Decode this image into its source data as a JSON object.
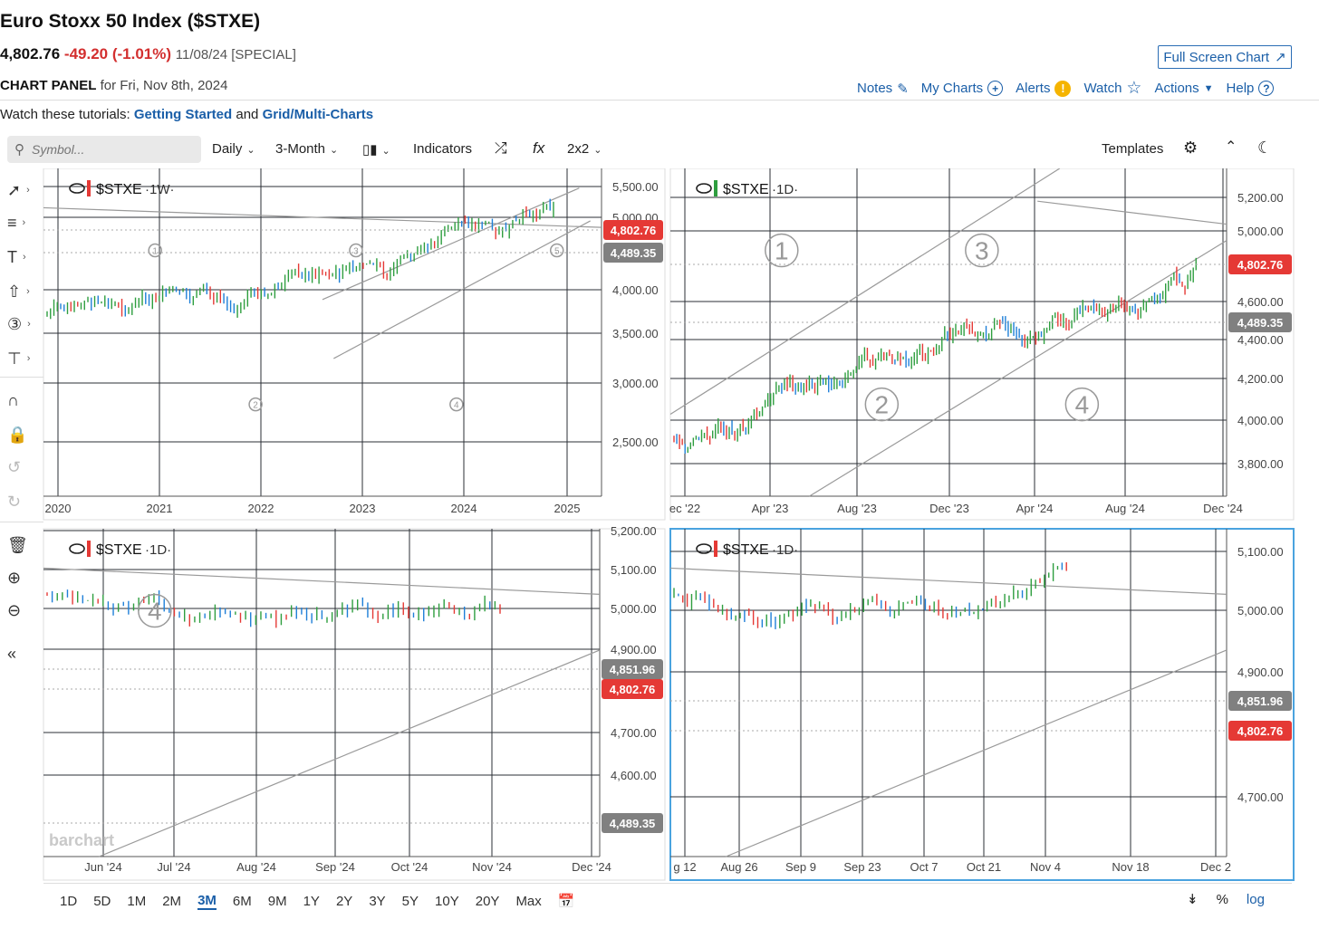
{
  "header": {
    "title": "Euro Stoxx 50 Index ($STXE)",
    "last_price": "4,802.76",
    "change": "-49.20 (-1.01%)",
    "meta": "11/08/24 [SPECIAL]",
    "fullscreen_label": "Full Screen Chart",
    "panel_label": "CHART PANEL",
    "panel_date": "for Fri, Nov 8th, 2024"
  },
  "links": {
    "notes": "Notes",
    "my_charts": "My Charts",
    "alerts": "Alerts",
    "watch": "Watch",
    "actions": "Actions",
    "help": "Help"
  },
  "tutorials": {
    "prefix": "Watch these tutorials:",
    "link1": "Getting Started",
    "and": "and",
    "link2": "Grid/Multi-Charts"
  },
  "toolbar": {
    "symbol_placeholder": "Symbol...",
    "interval": "Daily",
    "period": "3-Month",
    "indicators": "Indicators",
    "fx": "fx",
    "grid": "2x2",
    "templates": "Templates"
  },
  "bottom": {
    "ranges": [
      "1D",
      "5D",
      "1M",
      "2M",
      "3M",
      "6M",
      "9M",
      "1Y",
      "2Y",
      "3Y",
      "5Y",
      "10Y",
      "20Y",
      "Max"
    ],
    "active_range": "3M",
    "percent": "%",
    "log": "log"
  },
  "colors": {
    "up": "#2e9e3f",
    "down": "#e53935",
    "blue": "#1e7fd8",
    "price_tag": "#e53935",
    "level_tag": "#808080",
    "link": "#1b5fa8"
  },
  "charts": [
    {
      "id": "tl",
      "legend": "$STXE",
      "interval": "1W",
      "y_ticks": [
        "5,500.00",
        "5,000.00",
        "4,000.00",
        "3,500.00",
        "3,000.00",
        "2,500.00"
      ],
      "x_ticks": [
        "2020",
        "2021",
        "2022",
        "2023",
        "2024",
        "2025"
      ],
      "tags": [
        {
          "label": "4,802.76",
          "kind": "price"
        },
        {
          "label": "4,489.35",
          "kind": "level"
        }
      ],
      "waves": [
        "1",
        "2",
        "3",
        "4",
        "5"
      ]
    },
    {
      "id": "tr",
      "legend": "$STXE",
      "interval": "1D",
      "y_ticks": [
        "5,200.00",
        "5,000.00",
        "4,600.00",
        "4,400.00",
        "4,200.00",
        "4,000.00",
        "3,800.00"
      ],
      "x_ticks": [
        "ec '22",
        "Apr '23",
        "Aug '23",
        "Dec '23",
        "Apr '24",
        "Aug '24",
        "Dec '24"
      ],
      "tags": [
        {
          "label": "4,802.76",
          "kind": "price"
        },
        {
          "label": "4,489.35",
          "kind": "level"
        }
      ],
      "waves": [
        "1",
        "2",
        "3",
        "4"
      ]
    },
    {
      "id": "bl",
      "legend": "$STXE",
      "interval": "1D",
      "y_ticks": [
        "5,200.00",
        "5,100.00",
        "5,000.00",
        "4,900.00",
        "4,700.00",
        "4,600.00"
      ],
      "x_ticks": [
        "Jun '24",
        "Jul '24",
        "Aug '24",
        "Sep '24",
        "Oct '24",
        "Nov '24",
        "Dec '24"
      ],
      "tags": [
        {
          "label": "4,851.96",
          "kind": "level"
        },
        {
          "label": "4,802.76",
          "kind": "price"
        },
        {
          "label": "4,489.35",
          "kind": "level"
        }
      ],
      "watermark": "barchart",
      "waves": [
        "4"
      ]
    },
    {
      "id": "br",
      "legend": "$STXE",
      "interval": "1D",
      "y_ticks": [
        "5,100.00",
        "5,000.00",
        "4,900.00",
        "4,700.00"
      ],
      "x_ticks": [
        "g 12",
        "Aug 26",
        "Sep 9",
        "Sep 23",
        "Oct 7",
        "Oct 21",
        "Nov 4",
        "Nov 18",
        "Dec 2"
      ],
      "tags": [
        {
          "label": "4,851.96",
          "kind": "level"
        },
        {
          "label": "4,802.76",
          "kind": "price"
        }
      ],
      "waves": []
    }
  ]
}
